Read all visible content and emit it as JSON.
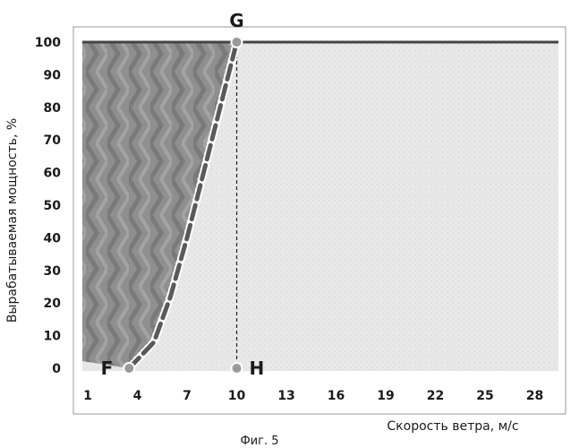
{
  "figure": {
    "caption": "Фиг. 5"
  },
  "chart_data": {
    "type": "area",
    "xlabel": "Скорость ветра, м/с",
    "ylabel": "Вырабатываемая мощность, %",
    "x_ticks": [
      "1",
      "4",
      "7",
      "10",
      "13",
      "16",
      "19",
      "22",
      "25",
      "28"
    ],
    "y_ticks": [
      "0",
      "10",
      "20",
      "30",
      "40",
      "50",
      "60",
      "70",
      "80",
      "90",
      "100"
    ],
    "xlim": [
      0,
      30
    ],
    "ylim": [
      0,
      100
    ],
    "grid": false,
    "legend": "none",
    "colors": {
      "dark_region": "#8a8a8a",
      "light_region": "#e6e6e6",
      "curve": "#5a5a5a",
      "rated_line": "#444444",
      "point_fill": "#9a9a9a"
    },
    "series": [
      {
        "values": [
          {
            "x": 3.5,
            "y": 0
          },
          {
            "x": 5,
            "y": 8
          },
          {
            "x": 6,
            "y": 22
          },
          {
            "x": 7,
            "y": 40
          },
          {
            "x": 8,
            "y": 60
          },
          {
            "x": 9,
            "y": 80
          },
          {
            "x": 10,
            "y": 100
          }
        ]
      }
    ],
    "rated_power_line": {
      "x_start": 10,
      "x_end": 30,
      "y": 100
    },
    "vertical_line": {
      "x": 10,
      "y_start": 0,
      "y_end": 100
    },
    "points": [
      {
        "label": "F",
        "x": 3.5,
        "y": 0
      },
      {
        "label": "G",
        "x": 10,
        "y": 100
      },
      {
        "label": "H",
        "x": 10,
        "y": 0
      }
    ]
  }
}
